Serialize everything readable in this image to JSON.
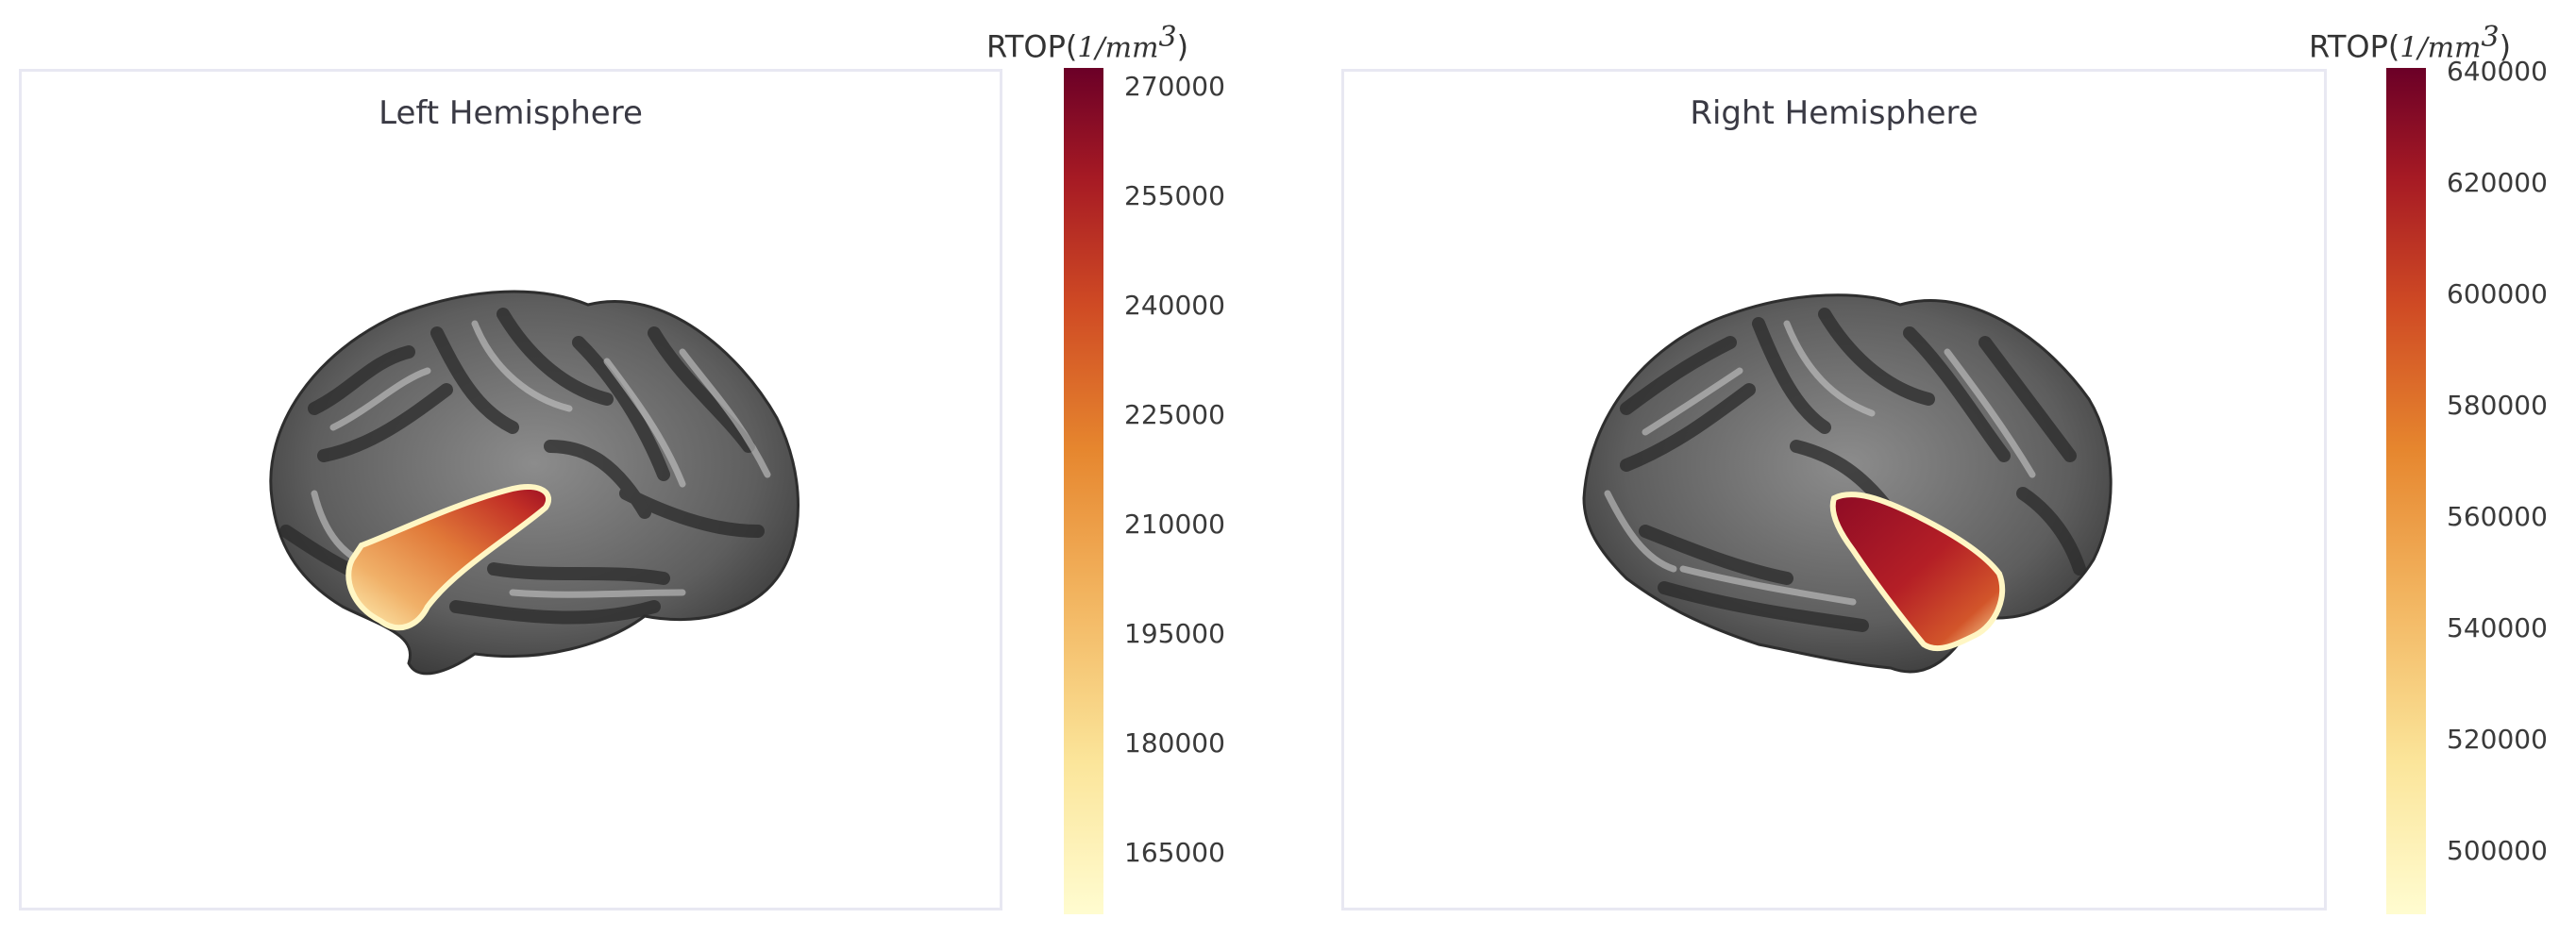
{
  "colors": {
    "colormap_low": "#fffcd0",
    "colormap_mid": "#e6872e",
    "colormap_high": "#6b0027",
    "background": "#ffffff",
    "panel_border": "#e8e8f2"
  },
  "panels": [
    {
      "title": "Left Hemisphere",
      "hemisphere": "left",
      "colorbar": {
        "title_prefix": "RTOP",
        "title_unit": "1/mm",
        "title_exponent": "3",
        "range": [
          155000,
          272000
        ],
        "ticks": [
          "270000",
          "255000",
          "240000",
          "225000",
          "210000",
          "195000",
          "180000",
          "165000"
        ]
      }
    },
    {
      "title": "Right Hemisphere",
      "hemisphere": "right",
      "colorbar": {
        "title_prefix": "RTOP",
        "title_unit": "1/mm",
        "title_exponent": "3",
        "range": [
          490000,
          642000
        ],
        "ticks": [
          "640000",
          "620000",
          "600000",
          "580000",
          "560000",
          "540000",
          "520000",
          "500000"
        ]
      }
    }
  ]
}
